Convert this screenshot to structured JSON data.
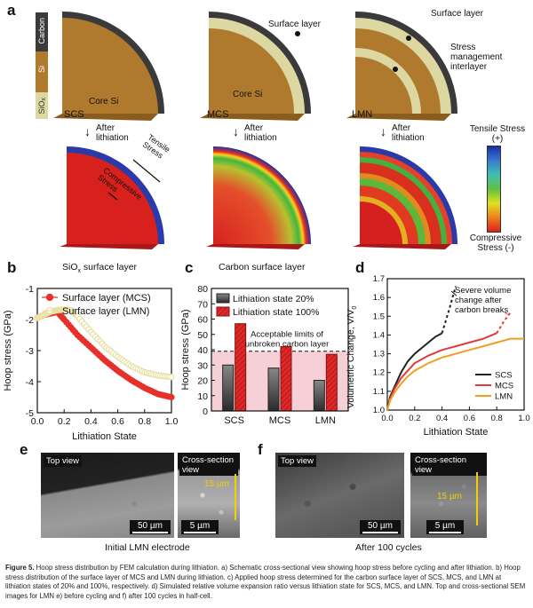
{
  "figure": {
    "panel_labels": {
      "a": "a",
      "b": "b",
      "c": "c",
      "d": "d",
      "e": "e",
      "f": "f"
    },
    "colors": {
      "carbon": "#3a3a3a",
      "si": "#b07a2e",
      "siox": "#ddd7a2",
      "tensile": "#1b2fa8",
      "compressive": "#d8201c"
    }
  },
  "panel_a": {
    "legend": [
      "Carbon",
      "Si",
      "SiOx"
    ],
    "legend_siox_base": "SiO",
    "legend_siox_sub": "x",
    "labels": {
      "core_si_1": "Core Si",
      "core_si_2": "Core Si",
      "surface_layer_1": "Surface layer",
      "surface_layer_2": "Surface layer",
      "stress_interlayer": "Stress management interlayer",
      "scs": "SCS",
      "mcs": "MCS",
      "lmn": "LMN",
      "after_lithiation": "After lithiation",
      "tensile_stress_label": "Tensile Stress",
      "compressive_stress_label": "Compressive Stress"
    },
    "colorbar": {
      "top": "Tensile Stress (+)",
      "bottom": "Compressive Stress (-)"
    }
  },
  "chart_data": [
    {
      "id": "b",
      "type": "line",
      "title_base": "SiO",
      "title_sub": "x",
      "title_rest": " surface layer",
      "xlabel": "Lithiation State",
      "ylabel": "Hoop stress (GPa)",
      "xlim": [
        0,
        1.0
      ],
      "ylim": [
        -5,
        -1
      ],
      "xticks": [
        "0.0",
        "0.2",
        "0.4",
        "0.6",
        "0.8",
        "1.0"
      ],
      "yticks": [
        "-1",
        "-2",
        "-3",
        "-4",
        "-5"
      ],
      "series": [
        {
          "name": "Surface layer (MCS)",
          "color": "#e8302b",
          "x": [
            0,
            0.05,
            0.1,
            0.15,
            0.2,
            0.3,
            0.4,
            0.5,
            0.6,
            0.7,
            0.8,
            0.9,
            1.0
          ],
          "y": [
            -1.95,
            -1.85,
            -1.8,
            -1.75,
            -2.0,
            -2.5,
            -2.9,
            -3.3,
            -3.65,
            -3.95,
            -4.2,
            -4.4,
            -4.5
          ]
        },
        {
          "name": "Surface layer (LMN)",
          "color": "#e9dfa0",
          "x": [
            0,
            0.05,
            0.1,
            0.15,
            0.2,
            0.25,
            0.3,
            0.4,
            0.5,
            0.6,
            0.7,
            0.8,
            0.9,
            1.0
          ],
          "y": [
            -1.95,
            -1.85,
            -1.75,
            -1.7,
            -1.68,
            -1.7,
            -1.9,
            -2.4,
            -2.85,
            -3.2,
            -3.5,
            -3.7,
            -3.8,
            -3.85
          ]
        }
      ]
    },
    {
      "id": "c",
      "type": "bar",
      "title": "Carbon surface layer",
      "xlabel": "",
      "ylabel": "Hoop stress (GPa)",
      "ylim": [
        0,
        80
      ],
      "yticks": [
        "0",
        "10",
        "20",
        "30",
        "40",
        "50",
        "60",
        "70",
        "80"
      ],
      "categories": [
        "SCS",
        "MCS",
        "LMN"
      ],
      "series": [
        {
          "name": "Lithiation state 20%",
          "values": [
            30,
            28,
            20
          ]
        },
        {
          "name": "Lithiation state 100%",
          "values": [
            57,
            42,
            37
          ]
        }
      ],
      "threshold": 39,
      "annotation": "Acceptable limits of unbroken carbon layer"
    },
    {
      "id": "d",
      "type": "line",
      "xlabel": "Lithiation State",
      "ylabel_base": "Volumetric Change, V/V",
      "ylabel_sub": "0",
      "xlim": [
        0,
        1.0
      ],
      "ylim": [
        1.0,
        1.7
      ],
      "xticks": [
        "0.0",
        "0.2",
        "0.4",
        "0.6",
        "0.8",
        "1.0"
      ],
      "yticks": [
        "1.0",
        "1.1",
        "1.2",
        "1.3",
        "1.4",
        "1.5",
        "1.6",
        "1.7"
      ],
      "annotation": "Severe volume change after carbon breaks",
      "series": [
        {
          "name": "SCS",
          "color": "#222222",
          "x": [
            0,
            0.02,
            0.05,
            0.1,
            0.15,
            0.2,
            0.25,
            0.3,
            0.35,
            0.4
          ],
          "y": [
            1.0,
            1.07,
            1.12,
            1.2,
            1.26,
            1.3,
            1.33,
            1.36,
            1.39,
            1.41
          ],
          "dashed_x": [
            0.4,
            0.45,
            0.5
          ],
          "dashed_y": [
            1.41,
            1.53,
            1.66
          ]
        },
        {
          "name": "MCS",
          "color": "#e03a3a",
          "x": [
            0,
            0.02,
            0.05,
            0.1,
            0.15,
            0.2,
            0.3,
            0.4,
            0.5,
            0.6,
            0.7,
            0.8
          ],
          "y": [
            1.0,
            1.06,
            1.11,
            1.17,
            1.21,
            1.25,
            1.29,
            1.32,
            1.34,
            1.36,
            1.38,
            1.41
          ],
          "dashed_x": [
            0.8,
            0.85,
            0.9
          ],
          "dashed_y": [
            1.41,
            1.47,
            1.52
          ]
        },
        {
          "name": "LMN",
          "color": "#f0a020",
          "x": [
            0,
            0.02,
            0.05,
            0.1,
            0.15,
            0.2,
            0.3,
            0.4,
            0.5,
            0.6,
            0.7,
            0.8,
            0.9,
            1.0
          ],
          "y": [
            1.0,
            1.05,
            1.09,
            1.14,
            1.18,
            1.21,
            1.25,
            1.28,
            1.3,
            1.32,
            1.34,
            1.36,
            1.38,
            1.38
          ]
        }
      ]
    }
  ],
  "panel_e": {
    "top_view": "Top view",
    "cross_view": "Cross-section view",
    "scale1": "50 µm",
    "scale2": "5 µm",
    "thickness": "15 µm",
    "caption": "Initial LMN electrode"
  },
  "panel_f": {
    "top_view": "Top view",
    "cross_view": "Cross-section view",
    "scale1": "50 µm",
    "scale2": "5 µm",
    "thickness": "15 µm",
    "caption": "After 100 cycles"
  },
  "caption": {
    "label": "Figure 5.",
    "text": " Hoop stress distribution by FEM calculation during lithiation. a) Schematic cross-sectional view showing hoop stress before cycling and after lithiation. b) Hoop stress distribution of the surface layer of MCS and LMN during lithiation. c) Applied hoop stress determined for the carbon surface layer of SCS, MCS, and LMN at lithiation states of 20% and 100%, respectively. d) Simulated relative volume expansion ratio versus lithiation state for SCS, MCS, and LMN. Top and cross-sectional SEM images for LMN e) before cycling and f) after 100 cycles in half-cell."
  }
}
